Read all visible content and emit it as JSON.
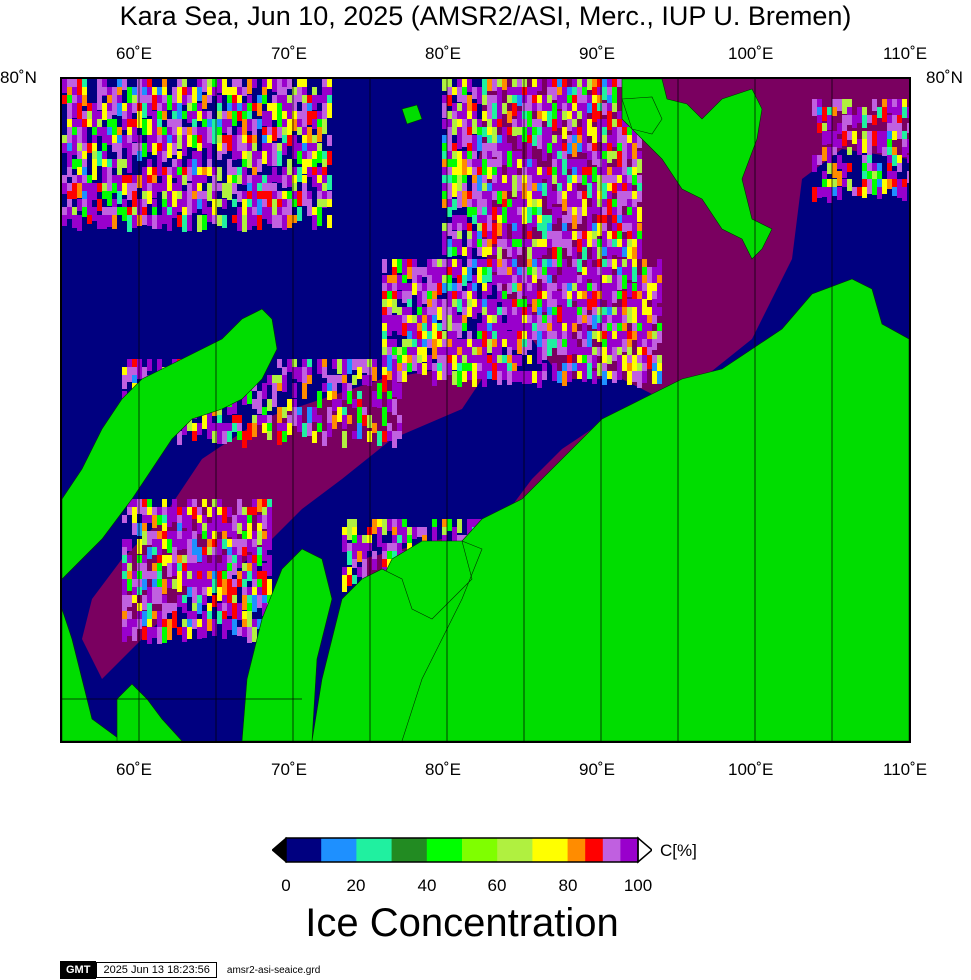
{
  "title": "Kara Sea, Jun 10, 2025 (AMSR2/ASI, Merc., IUP U. Bremen)",
  "axes": {
    "lon_labels": [
      "60˚E",
      "70˚E",
      "80˚E",
      "90˚E",
      "100˚E",
      "110˚E"
    ],
    "lat_label_left": "80˚N",
    "lat_label_right": "80˚N"
  },
  "colors": {
    "ocean": "#000080",
    "land": "#00dd00",
    "ice_full": "#7a0060"
  },
  "colorbar": {
    "unit": "C[%]",
    "tick_labels": [
      "0",
      "20",
      "40",
      "60",
      "80",
      "100"
    ],
    "title": "Ice Concentration",
    "bins": [
      {
        "from": 0,
        "to": 10,
        "color": "#000080"
      },
      {
        "from": 10,
        "to": 20,
        "color": "#1e90ff"
      },
      {
        "from": 20,
        "to": 30,
        "color": "#20f0a0"
      },
      {
        "from": 30,
        "to": 40,
        "color": "#228b22"
      },
      {
        "from": 40,
        "to": 50,
        "color": "#00ff00"
      },
      {
        "from": 50,
        "to": 60,
        "color": "#7fff00"
      },
      {
        "from": 60,
        "to": 70,
        "color": "#b0f040"
      },
      {
        "from": 70,
        "to": 80,
        "color": "#ffff00"
      },
      {
        "from": 80,
        "to": 85,
        "color": "#ff8c00"
      },
      {
        "from": 85,
        "to": 90,
        "color": "#ff0000"
      },
      {
        "from": 90,
        "to": 95,
        "color": "#c060e0"
      },
      {
        "from": 95,
        "to": 100,
        "color": "#9900cc"
      }
    ]
  },
  "footer": {
    "logo": "GMT",
    "timestamp": "2025 Jun 13 18:23:56",
    "grid_file": "amsr2-asi-seaice.grd"
  }
}
